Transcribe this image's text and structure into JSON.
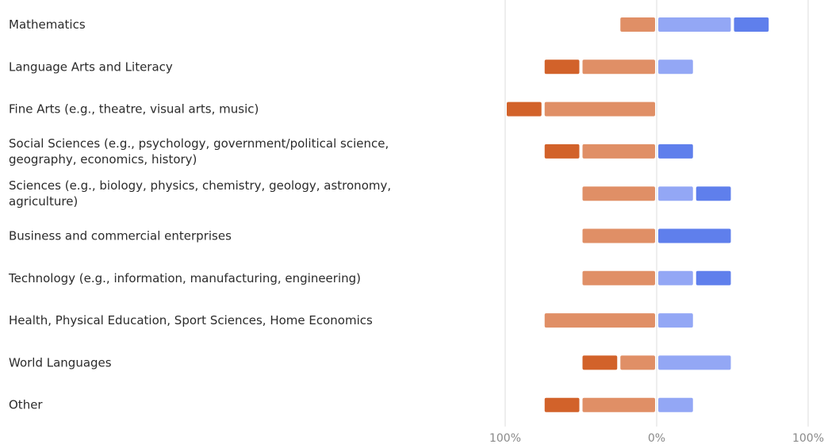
{
  "chart_data": {
    "type": "bar",
    "orientation": "horizontal",
    "stacked": "diverging",
    "categories": [
      "Mathematics",
      "Language Arts and Literacy",
      "Fine Arts (e.g., theatre, visual arts, music)",
      "Social Sciences (e.g., psychology, government/political science, geography, economics, history)",
      "Sciences (e.g., biology, physics, chemistry, geology, astronomy, agriculture)",
      "Business and commercial enterprises",
      "Technology (e.g., information, manufacturing, engineering)",
      "Health, Physical Education, Sport Sciences, Home Economics",
      "World Languages",
      "Other"
    ],
    "category_lines": [
      [
        "Mathematics"
      ],
      [
        "Language Arts and Literacy"
      ],
      [
        "Fine Arts (e.g., theatre, visual arts, music)"
      ],
      [
        "Social Sciences (e.g., psychology, government/political science,",
        "geography, economics, history)"
      ],
      [
        "Sciences (e.g., biology, physics, chemistry, geology, astronomy,",
        "agriculture)"
      ],
      [
        "Business and commercial enterprises"
      ],
      [
        "Technology (e.g., information, manufacturing, engineering)"
      ],
      [
        "Health, Physical Education, Sport Sciences, Home Economics"
      ],
      [
        "World Languages"
      ],
      [
        "Other"
      ]
    ],
    "series": [
      {
        "side": "negative",
        "color": "#d2622a",
        "values": [
          0,
          25,
          25,
          25,
          0,
          0,
          0,
          0,
          25,
          25
        ]
      },
      {
        "side": "negative",
        "color": "#e08f66",
        "values": [
          25,
          50,
          75,
          50,
          50,
          50,
          50,
          75,
          25,
          50
        ]
      },
      {
        "side": "positive",
        "color": "#93a7f5",
        "values": [
          50,
          25,
          0,
          0,
          25,
          0,
          25,
          25,
          50,
          25
        ]
      },
      {
        "side": "positive",
        "color": "#5f7fec",
        "values": [
          25,
          0,
          0,
          25,
          25,
          50,
          25,
          0,
          0,
          0
        ]
      }
    ],
    "x_ticks": [
      "100%",
      "0%",
      "100%"
    ],
    "xlim": [
      -100,
      100
    ],
    "grid": "vertical lines at -100%, 0%, 100%"
  }
}
